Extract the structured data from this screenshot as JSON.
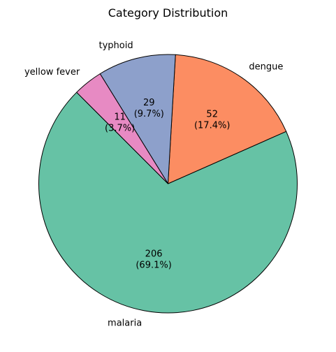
{
  "chart_data": {
    "type": "pie",
    "title": "Category Distribution",
    "start_angle_deg": 135,
    "direction": "counterclockwise",
    "edge_color": "#000000",
    "slices": [
      {
        "label": "malaria",
        "value": 206,
        "pct_label": "(69.1%)",
        "color": "#66c2a5"
      },
      {
        "label": "dengue",
        "value": 52,
        "pct_label": "(17.4%)",
        "color": "#fc8d62"
      },
      {
        "label": "typhoid",
        "value": 29,
        "pct_label": "(9.7%)",
        "color": "#8da0cb"
      },
      {
        "label": "yellow fever",
        "value": 11,
        "pct_label": "(3.7%)",
        "color": "#e78ac3"
      }
    ]
  }
}
